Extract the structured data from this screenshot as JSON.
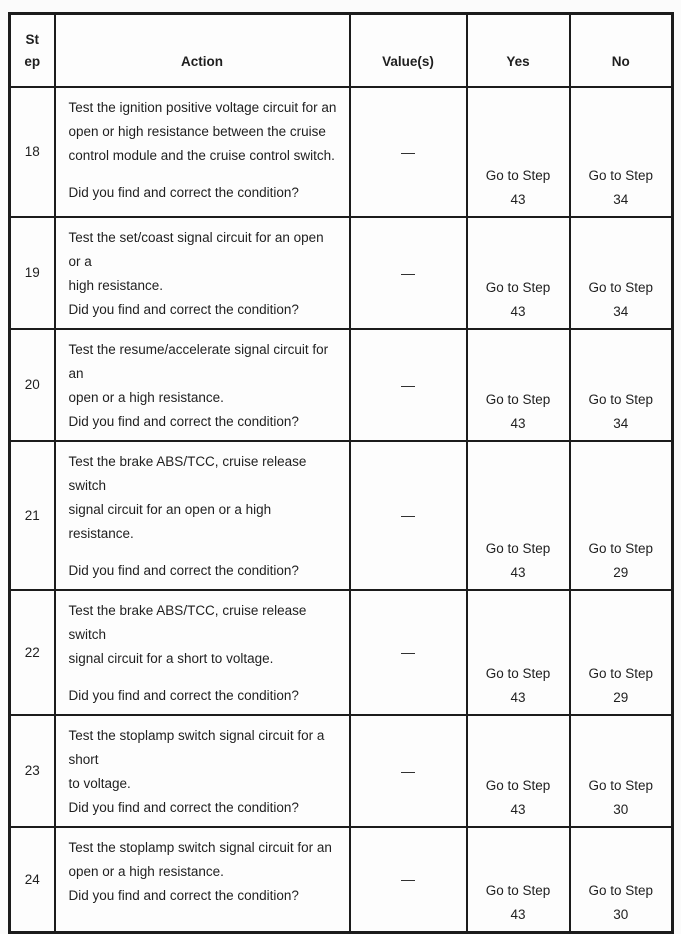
{
  "table": {
    "headers": {
      "step": "St ep",
      "action": "Action",
      "values": "Value(s)",
      "yes": "Yes",
      "no": "No"
    },
    "rows": [
      {
        "step": "18",
        "action_lines": [
          "Test the ignition positive voltage circuit for an",
          "open or high resistance between the cruise",
          "control module and the cruise control switch."
        ],
        "question": "Did you find and correct the condition?",
        "value": "—",
        "yes": {
          "label": "Go to Step",
          "step": "43"
        },
        "no": {
          "label": "Go to Step",
          "step": "34"
        }
      },
      {
        "step": "19",
        "action_lines": [
          "Test the set/coast signal circuit for an open or a",
          "high resistance."
        ],
        "question": "Did you find and correct the condition?",
        "value": "—",
        "yes": {
          "label": "Go to Step",
          "step": "43"
        },
        "no": {
          "label": "Go to Step",
          "step": "34"
        }
      },
      {
        "step": "20",
        "action_lines": [
          "Test the resume/accelerate signal circuit for an",
          "open or a high resistance."
        ],
        "question": "Did you find and correct the condition?",
        "value": "—",
        "yes": {
          "label": "Go to Step",
          "step": "43"
        },
        "no": {
          "label": "Go to Step",
          "step": "34"
        }
      },
      {
        "step": "21",
        "action_lines": [
          "Test the brake ABS/TCC, cruise release switch",
          "signal circuit for an open or a high resistance."
        ],
        "question": "Did you find and correct the condition?",
        "value": "—",
        "yes": {
          "label": "Go to Step",
          "step": "43"
        },
        "no": {
          "label": "Go to Step",
          "step": "29"
        }
      },
      {
        "step": "22",
        "action_lines": [
          "Test the brake ABS/TCC, cruise release switch",
          "signal circuit for a short to voltage."
        ],
        "question": "Did you find and correct the condition?",
        "value": "—",
        "yes": {
          "label": "Go to Step",
          "step": "43"
        },
        "no": {
          "label": "Go to Step",
          "step": "29"
        }
      },
      {
        "step": "23",
        "action_lines": [
          "Test the stoplamp switch signal circuit for a short",
          "to voltage."
        ],
        "question": "Did you find and correct the condition?",
        "value": "—",
        "yes": {
          "label": "Go to Step",
          "step": "43"
        },
        "no": {
          "label": "Go to Step",
          "step": "30"
        }
      },
      {
        "step": "24",
        "action_lines": [
          "Test the stoplamp switch signal circuit for an",
          "open or a high resistance.",
          "Did you find and correct the condition?"
        ],
        "question": "",
        "value": "—",
        "yes": {
          "label": "Go to Step",
          "step": "43"
        },
        "no": {
          "label": "Go to Step",
          "step": "30"
        }
      }
    ]
  }
}
